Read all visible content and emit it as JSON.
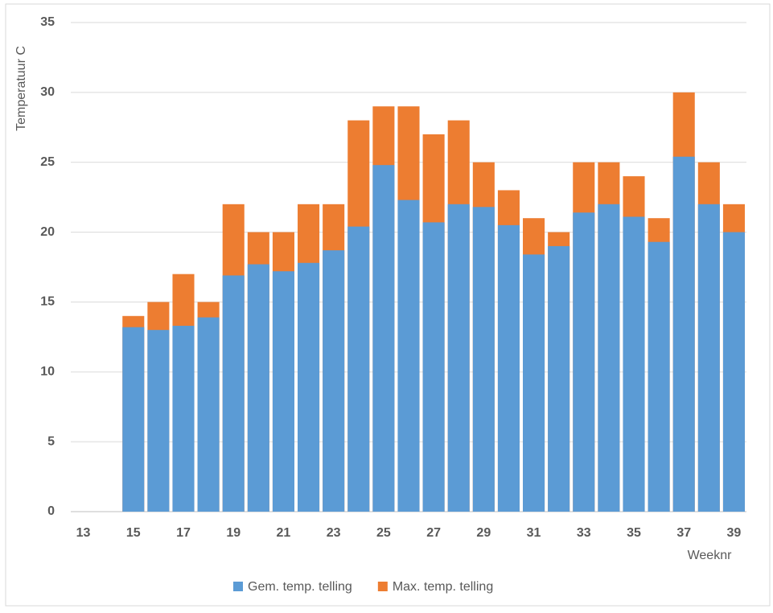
{
  "chart_data": {
    "type": "bar",
    "overlap": true,
    "y_label": "Temperatuur C",
    "x_label": "Weeknr",
    "categories": [
      "13",
      null,
      "15",
      null,
      "17",
      null,
      "19",
      null,
      "21",
      null,
      "23",
      null,
      "25",
      null,
      "27",
      null,
      "29",
      null,
      "31",
      null,
      "33",
      null,
      "35",
      null,
      "37",
      null,
      "39"
    ],
    "series": [
      {
        "name": "Max. temp. telling",
        "color": "#ed7d31",
        "values": [
          null,
          null,
          14,
          15,
          17,
          15,
          22,
          20,
          20,
          22,
          22,
          28,
          29,
          29,
          27,
          28,
          25,
          23,
          21,
          20,
          25,
          25,
          24,
          21,
          30,
          25,
          22
        ]
      },
      {
        "name": "Gem. temp. telling",
        "color": "#5b9bd5",
        "values": [
          null,
          null,
          13.2,
          13.0,
          13.3,
          13.9,
          16.9,
          17.7,
          17.2,
          17.8,
          18.7,
          20.4,
          24.8,
          22.3,
          20.7,
          22.0,
          21.8,
          20.5,
          18.4,
          19.0,
          21.4,
          22.0,
          21.1,
          19.3,
          25.4,
          22.0,
          20.0
        ]
      }
    ],
    "ylim": [
      0,
      35
    ],
    "yticks": [
      0,
      5,
      10,
      15,
      20,
      25,
      30,
      35
    ],
    "grid": true,
    "legend": "bottom"
  }
}
